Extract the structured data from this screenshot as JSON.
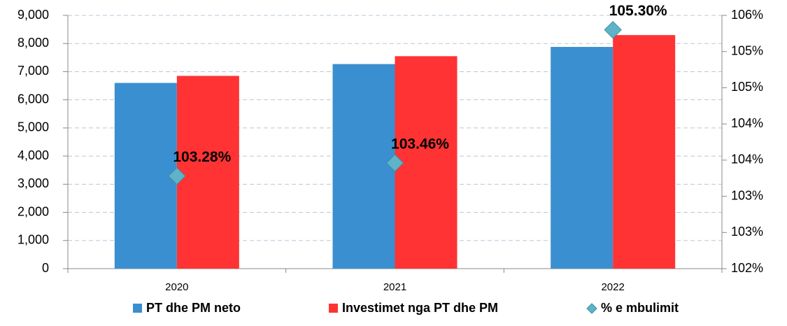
{
  "chart_data": {
    "type": "bar",
    "categories": [
      "2020",
      "2021",
      "2022"
    ],
    "series": [
      {
        "name": "PT dhe PM neto",
        "color": "#3a8fd0",
        "values": [
          6600,
          7270,
          7880
        ]
      },
      {
        "name": "Investimet nga PT dhe PM",
        "color": "#ff3333",
        "values": [
          6850,
          7550,
          8300
        ]
      },
      {
        "name": "% e mbulimit",
        "color": "#5fb3c8",
        "axis": "y2",
        "type": "scatter",
        "values": [
          103.28,
          103.46,
          105.3
        ],
        "value_labels": [
          "103.28%",
          "103.46%",
          "105.30%"
        ]
      }
    ],
    "ylim": [
      0,
      9000
    ],
    "yticks": [
      0,
      {
        "value": 1000,
        "label": "1,000"
      },
      {
        "value": 2000,
        "label": "2,000"
      },
      {
        "value": 3000,
        "label": "3,000"
      },
      {
        "value": 4000,
        "label": "4,000"
      },
      {
        "value": 5000,
        "label": "5,000"
      },
      {
        "value": 6000,
        "label": "6,000"
      },
      {
        "value": 7000,
        "label": "7,000"
      },
      {
        "value": 8000,
        "label": "8,000"
      },
      {
        "value": 9000,
        "label": "9,000"
      }
    ],
    "y2lim": [
      102,
      105.5
    ],
    "y2ticks": [
      {
        "value": 102,
        "label": "102%"
      },
      {
        "value": 102.5,
        "label": "103%"
      },
      {
        "value": 103,
        "label": "103%"
      },
      {
        "value": 103.5,
        "label": "104%"
      },
      {
        "value": 104,
        "label": "104%"
      },
      {
        "value": 104.5,
        "label": "105%"
      },
      {
        "value": 105,
        "label": "105%"
      },
      {
        "value": 105.5,
        "label": "106%"
      }
    ],
    "grid": true,
    "legend": "bottom"
  }
}
